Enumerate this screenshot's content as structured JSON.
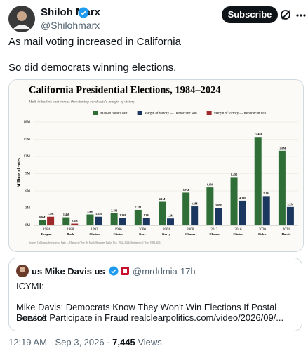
{
  "header": {
    "name": "Shiloh Marx",
    "handle": "@Shilohmarx",
    "button": "Subscribe"
  },
  "tweet": {
    "lines": [
      "As mail voting increased in California",
      "So did democrats winning elections."
    ]
  },
  "chart_data": {
    "type": "bar",
    "title": "California Presidential Elections, 1984–2024",
    "subtitle": "Mail-in ballots cast versus the winning candidate's margin of victory",
    "ylabel": "Millions of votes",
    "source": "Source: California Secretary of State — Historical Vote By Mail (Absentee) Ballot Use, 1962–2024; Statement of Vote, 1984–2024",
    "categories": [
      "1984",
      "1988",
      "1992",
      "1996",
      "2000",
      "2004",
      "2008",
      "2012",
      "2016",
      "2020",
      "2024"
    ],
    "candidates": [
      "Reagan",
      "Bush",
      "Clinton",
      "Clinton",
      "Gore",
      "Kerry",
      "Obama",
      "Obama",
      "Clinton",
      "Biden",
      "Harris"
    ],
    "series": [
      {
        "name": "Mail-in ballots cast",
        "color": "#2f6e37",
        "values": [
          0.9,
          1.4,
          1.9,
          2.1,
          2.7,
          4.1,
          5.7,
          6.6,
          8.4,
          15.4,
          13.0
        ],
        "value_labels": [
          "0.9M",
          "1.4M",
          "1.9M",
          "2.1M",
          "2.7M",
          "4.1M",
          "5.7M",
          "6.6M",
          "8.4M",
          "15.4M",
          "13.0M"
        ]
      },
      {
        "name": "Margin of victory — Democratic win",
        "color": "#1b365f",
        "values": [
          null,
          null,
          1.5,
          1.3,
          1.3,
          1.2,
          3.3,
          3.0,
          4.3,
          5.1,
          3.2
        ],
        "value_labels": [
          null,
          null,
          "1.5M",
          "1.3M",
          "1.3M",
          "1.2M",
          "3.3M",
          "3.0M",
          "4.3M",
          "5.1M",
          "3.2M"
        ]
      },
      {
        "name": "Margin of victory — Republican win",
        "color": "#9e2a2b",
        "values": [
          1.5,
          0.3,
          null,
          null,
          null,
          null,
          null,
          null,
          null,
          null,
          null
        ],
        "value_labels": [
          "1.5M",
          "0.3M",
          null,
          null,
          null,
          null,
          null,
          null,
          null,
          null,
          null
        ]
      }
    ],
    "ylim": [
      0,
      18
    ],
    "yticks": [
      {
        "value": 0,
        "label": "0M"
      },
      {
        "value": 3,
        "label": "3M"
      },
      {
        "value": 6,
        "label": "6M"
      },
      {
        "value": 9,
        "label": "9M"
      },
      {
        "value": 12,
        "label": "12M"
      },
      {
        "value": 15,
        "label": "15M"
      },
      {
        "value": 18,
        "label": "18M"
      }
    ],
    "grid": true
  },
  "quote": {
    "name": "us Mike Davis us",
    "handle": "@mrddmia",
    "time": "· 17h",
    "lines": [
      "ICYMI:",
      "Mike Davis: Democrats Know They Won't Win Elections If Postal Service",
      "Doesn't Participate in Fraud  realclearpolitics.com/video/2026/09/..."
    ]
  },
  "footer": {
    "time": "12:19 AM · Sep 3, 2026 · ",
    "views": "7,445",
    "views_label": " Views"
  }
}
